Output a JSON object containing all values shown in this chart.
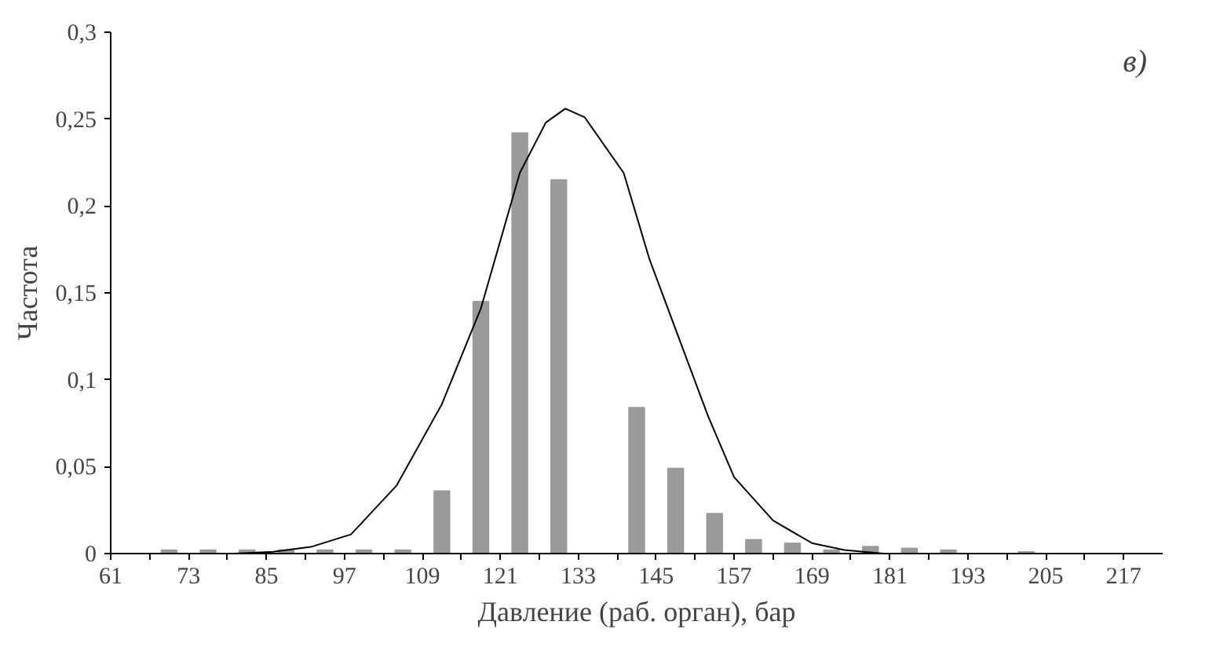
{
  "chart_data": {
    "type": "histogram",
    "xlabel": "Давление (раб. орган), бар",
    "ylabel": "Частота",
    "annotations": [
      "в)"
    ],
    "bins": [
      61,
      67,
      73,
      79,
      85,
      91,
      97,
      103,
      109,
      115,
      121,
      127,
      133,
      139,
      145,
      151,
      157,
      163,
      169,
      175,
      181,
      187,
      193,
      199,
      205,
      211,
      217
    ],
    "values": [
      0,
      0.002,
      0.002,
      0.002,
      0.002,
      0.002,
      0.002,
      0.002,
      0.036,
      0.145,
      0.242,
      0.215,
      0,
      0.084,
      0.049,
      0.023,
      0.008,
      0.006,
      0.002,
      0.004,
      0.003,
      0.002,
      0,
      0.001,
      0,
      0
    ],
    "color": "#9a9a9a",
    "series": [
      {
        "type": "line",
        "color": "#000000",
        "x": [
          80,
          86,
          92,
          98,
          105,
          112,
          118,
          124,
          128,
          131,
          134,
          140,
          144,
          149,
          153,
          157,
          163,
          169,
          174,
          180
        ],
        "values": [
          0,
          0.001,
          0.004,
          0.011,
          0.039,
          0.086,
          0.141,
          0.219,
          0.248,
          0.256,
          0.251,
          0.219,
          0.169,
          0.119,
          0.079,
          0.044,
          0.019,
          0.006,
          0.002,
          0
        ]
      }
    ],
    "xlim": [
      61,
      223
    ],
    "ylim": [
      0,
      0.3
    ],
    "xticks": [
      61,
      {
        "value": 67,
        "label": null
      },
      73,
      {
        "value": 79,
        "label": null
      },
      85,
      {
        "value": 91,
        "label": null
      },
      97,
      {
        "value": 103,
        "label": null
      },
      109,
      {
        "value": 115,
        "label": null
      },
      121,
      {
        "value": 127,
        "label": null
      },
      133,
      {
        "value": 139,
        "label": null
      },
      145,
      {
        "value": 151,
        "label": null
      },
      157,
      {
        "value": 163,
        "label": null
      },
      169,
      {
        "value": 175,
        "label": null
      },
      181,
      {
        "value": 187,
        "label": null
      },
      193,
      {
        "value": 199,
        "label": null
      },
      205,
      {
        "value": 211,
        "label": null
      },
      217
    ],
    "yticks": [
      0,
      {
        "value": 0.05,
        "label": "0,05"
      },
      {
        "value": 0.1,
        "label": "0,1"
      },
      {
        "value": 0.15,
        "label": "0,15"
      },
      {
        "value": 0.2,
        "label": "0,2"
      },
      {
        "value": 0.25,
        "label": "0,25"
      },
      {
        "value": 0.3,
        "label": "0,3"
      }
    ],
    "grid": false
  }
}
